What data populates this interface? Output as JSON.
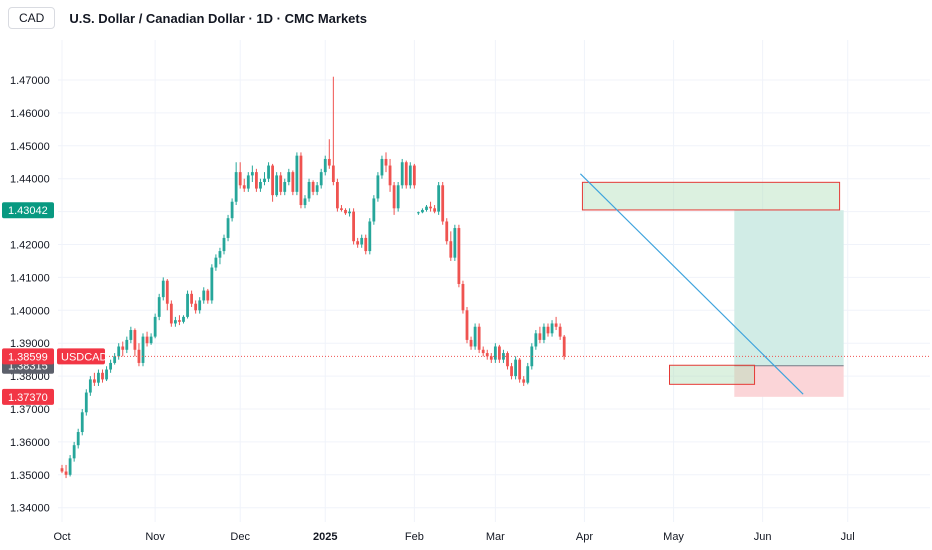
{
  "header": {
    "symbol": "CAD",
    "title": "U.S. Dollar / Canadian Dollar · 1D · CMC Markets"
  },
  "price_tags": {
    "take_profit": "1.43042",
    "current": "1.38599",
    "current_label": "USDCAD",
    "entry": "1.38315",
    "stop_loss": "1.37370"
  },
  "colors": {
    "up": "#26a69a",
    "down": "#ef5350",
    "profit_zone": "#d1ece6",
    "loss_zone": "#fbd5d8",
    "trendline": "#3ea3dd",
    "current_line": "#ef5350"
  },
  "chart_data": {
    "type": "candlestick",
    "title": "U.S. Dollar / Canadian Dollar · 1D · CMC Markets",
    "ylim": [
      1.335,
      1.475
    ],
    "y_ticks": [
      "1.47000",
      "1.46000",
      "1.45000",
      "1.44000",
      "1.43000",
      "1.42000",
      "1.41000",
      "1.40000",
      "1.39000",
      "1.38000",
      "1.37000",
      "1.36000",
      "1.35000",
      "1.34000"
    ],
    "x_ticks": [
      {
        "label": "Oct",
        "index": 0
      },
      {
        "label": "Nov",
        "index": 23
      },
      {
        "label": "Dec",
        "index": 44
      },
      {
        "label": "2025",
        "index": 65
      },
      {
        "label": "Feb",
        "index": 87
      },
      {
        "label": "Mar",
        "index": 107
      },
      {
        "label": "Apr",
        "index": 129
      },
      {
        "label": "May",
        "index": 151
      },
      {
        "label": "Jun",
        "index": 173
      },
      {
        "label": "Jul",
        "index": 194
      }
    ],
    "candles": [
      [
        1.352,
        1.353,
        1.3505,
        1.351
      ],
      [
        1.351,
        1.353,
        1.349,
        1.35
      ],
      [
        1.35,
        1.356,
        1.3495,
        1.355
      ],
      [
        1.355,
        1.36,
        1.354,
        1.359
      ],
      [
        1.359,
        1.364,
        1.358,
        1.363
      ],
      [
        1.363,
        1.37,
        1.362,
        1.369
      ],
      [
        1.369,
        1.376,
        1.368,
        1.375
      ],
      [
        1.375,
        1.38,
        1.374,
        1.379
      ],
      [
        1.379,
        1.381,
        1.377,
        1.378
      ],
      [
        1.378,
        1.382,
        1.377,
        1.381
      ],
      [
        1.381,
        1.382,
        1.378,
        1.379
      ],
      [
        1.379,
        1.383,
        1.3785,
        1.382
      ],
      [
        1.382,
        1.385,
        1.381,
        1.384
      ],
      [
        1.384,
        1.387,
        1.3835,
        1.386
      ],
      [
        1.386,
        1.39,
        1.385,
        1.389
      ],
      [
        1.389,
        1.3905,
        1.386,
        1.388
      ],
      [
        1.388,
        1.392,
        1.387,
        1.391
      ],
      [
        1.391,
        1.395,
        1.39,
        1.394
      ],
      [
        1.394,
        1.3945,
        1.386,
        1.388
      ],
      [
        1.388,
        1.39,
        1.383,
        1.384
      ],
      [
        1.384,
        1.393,
        1.383,
        1.392
      ],
      [
        1.392,
        1.3935,
        1.389,
        1.39
      ],
      [
        1.39,
        1.393,
        1.3895,
        1.392
      ],
      [
        1.392,
        1.399,
        1.3915,
        1.398
      ],
      [
        1.398,
        1.405,
        1.397,
        1.404
      ],
      [
        1.404,
        1.41,
        1.403,
        1.409
      ],
      [
        1.409,
        1.4095,
        1.4,
        1.402
      ],
      [
        1.402,
        1.403,
        1.395,
        1.396
      ],
      [
        1.396,
        1.398,
        1.395,
        1.397
      ],
      [
        1.397,
        1.3985,
        1.3955,
        1.3965
      ],
      [
        1.3965,
        1.3985,
        1.396,
        1.398
      ],
      [
        1.398,
        1.406,
        1.3975,
        1.405
      ],
      [
        1.405,
        1.406,
        1.401,
        1.402
      ],
      [
        1.402,
        1.403,
        1.399,
        1.4
      ],
      [
        1.4,
        1.404,
        1.399,
        1.403
      ],
      [
        1.403,
        1.407,
        1.402,
        1.406
      ],
      [
        1.406,
        1.4065,
        1.402,
        1.403
      ],
      [
        1.403,
        1.414,
        1.402,
        1.413
      ],
      [
        1.413,
        1.417,
        1.412,
        1.416
      ],
      [
        1.416,
        1.419,
        1.414,
        1.418
      ],
      [
        1.418,
        1.423,
        1.417,
        1.422
      ],
      [
        1.422,
        1.429,
        1.421,
        1.428
      ],
      [
        1.428,
        1.434,
        1.427,
        1.433
      ],
      [
        1.433,
        1.445,
        1.432,
        1.442
      ],
      [
        1.442,
        1.445,
        1.437,
        1.438
      ],
      [
        1.438,
        1.44,
        1.436,
        1.437
      ],
      [
        1.437,
        1.442,
        1.436,
        1.441
      ],
      [
        1.441,
        1.444,
        1.439,
        1.442
      ],
      [
        1.442,
        1.443,
        1.436,
        1.437
      ],
      [
        1.437,
        1.44,
        1.436,
        1.439
      ],
      [
        1.439,
        1.442,
        1.438,
        1.44
      ],
      [
        1.44,
        1.445,
        1.439,
        1.444
      ],
      [
        1.444,
        1.4445,
        1.433,
        1.435
      ],
      [
        1.435,
        1.442,
        1.4345,
        1.441
      ],
      [
        1.441,
        1.442,
        1.435,
        1.436
      ],
      [
        1.436,
        1.44,
        1.435,
        1.439
      ],
      [
        1.439,
        1.443,
        1.438,
        1.442
      ],
      [
        1.442,
        1.4425,
        1.435,
        1.436
      ],
      [
        1.436,
        1.448,
        1.435,
        1.447
      ],
      [
        1.447,
        1.448,
        1.431,
        1.432
      ],
      [
        1.432,
        1.435,
        1.431,
        1.434
      ],
      [
        1.434,
        1.44,
        1.433,
        1.439
      ],
      [
        1.439,
        1.4395,
        1.435,
        1.436
      ],
      [
        1.436,
        1.439,
        1.435,
        1.438
      ],
      [
        1.438,
        1.443,
        1.437,
        1.442
      ],
      [
        1.442,
        1.447,
        1.441,
        1.446
      ],
      [
        1.446,
        1.452,
        1.443,
        1.444
      ],
      [
        1.444,
        1.471,
        1.438,
        1.439
      ],
      [
        1.439,
        1.44,
        1.43,
        1.431
      ],
      [
        1.431,
        1.432,
        1.43,
        1.4305
      ],
      [
        1.4305,
        1.431,
        1.429,
        1.4295
      ],
      [
        1.4295,
        1.431,
        1.4285,
        1.43
      ],
      [
        1.43,
        1.431,
        1.42,
        1.421
      ],
      [
        1.421,
        1.422,
        1.419,
        1.42
      ],
      [
        1.42,
        1.423,
        1.419,
        1.422
      ],
      [
        1.422,
        1.423,
        1.417,
        1.418
      ],
      [
        1.418,
        1.428,
        1.417,
        1.427
      ],
      [
        1.427,
        1.435,
        1.426,
        1.434
      ],
      [
        1.434,
        1.442,
        1.433,
        1.441
      ],
      [
        1.441,
        1.447,
        1.44,
        1.446
      ],
      [
        1.446,
        1.448,
        1.442,
        1.444
      ],
      [
        1.444,
        1.446,
        1.436,
        1.438
      ],
      [
        1.438,
        1.439,
        1.429,
        1.431
      ],
      [
        1.431,
        1.439,
        1.43,
        1.438
      ],
      [
        1.438,
        1.446,
        1.437,
        1.445
      ],
      [
        1.445,
        1.4455,
        1.437,
        1.438
      ],
      [
        1.438,
        1.445,
        1.437,
        1.444
      ],
      [
        1.444,
        1.4445,
        1.437,
        1.438
      ],
      [
        1.4295,
        1.43,
        1.429,
        1.4298
      ],
      [
        1.4298,
        1.431,
        1.4295,
        1.4305
      ],
      [
        1.4305,
        1.432,
        1.43,
        1.4315
      ],
      [
        1.4315,
        1.433,
        1.43,
        1.431
      ],
      [
        1.431,
        1.432,
        1.4295,
        1.43
      ],
      [
        1.43,
        1.439,
        1.429,
        1.438
      ],
      [
        1.438,
        1.439,
        1.426,
        1.427
      ],
      [
        1.427,
        1.428,
        1.42,
        1.421
      ],
      [
        1.421,
        1.424,
        1.415,
        1.416
      ],
      [
        1.416,
        1.426,
        1.415,
        1.425
      ],
      [
        1.425,
        1.426,
        1.407,
        1.408
      ],
      [
        1.408,
        1.409,
        1.399,
        1.4
      ],
      [
        1.4,
        1.401,
        1.39,
        1.391
      ],
      [
        1.391,
        1.392,
        1.388,
        1.389
      ],
      [
        1.389,
        1.396,
        1.388,
        1.395
      ],
      [
        1.395,
        1.396,
        1.387,
        1.388
      ],
      [
        1.388,
        1.389,
        1.386,
        1.387
      ],
      [
        1.387,
        1.388,
        1.385,
        1.386
      ],
      [
        1.386,
        1.387,
        1.384,
        1.385
      ],
      [
        1.385,
        1.39,
        1.384,
        1.389
      ],
      [
        1.389,
        1.3895,
        1.384,
        1.385
      ],
      [
        1.385,
        1.388,
        1.384,
        1.387
      ],
      [
        1.387,
        1.3875,
        1.382,
        1.383
      ],
      [
        1.383,
        1.384,
        1.379,
        1.38
      ],
      [
        1.38,
        1.386,
        1.379,
        1.385
      ],
      [
        1.385,
        1.3855,
        1.378,
        1.379
      ],
      [
        1.379,
        1.38,
        1.377,
        1.378
      ],
      [
        1.378,
        1.384,
        1.3775,
        1.383
      ],
      [
        1.383,
        1.39,
        1.382,
        1.389
      ],
      [
        1.389,
        1.394,
        1.388,
        1.393
      ],
      [
        1.393,
        1.395,
        1.39,
        1.391
      ],
      [
        1.391,
        1.396,
        1.39,
        1.395
      ],
      [
        1.395,
        1.396,
        1.392,
        1.393
      ],
      [
        1.393,
        1.397,
        1.392,
        1.396
      ],
      [
        1.396,
        1.398,
        1.394,
        1.395
      ],
      [
        1.395,
        1.396,
        1.391,
        1.392
      ],
      [
        1.392,
        1.3925,
        1.385,
        1.386
      ]
    ]
  }
}
